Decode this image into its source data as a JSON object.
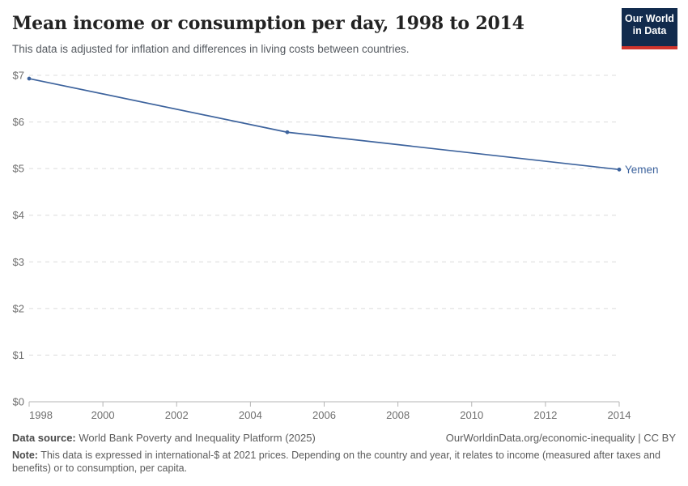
{
  "header": {
    "title": "Mean income or consumption per day, 1998 to 2014",
    "subtitle": "This data is adjusted for inflation and differences in living costs between countries."
  },
  "logo": {
    "line1": "Our World",
    "line2": "in Data",
    "bg_color": "#122b4d",
    "accent_color": "#d0342c"
  },
  "chart_data": {
    "type": "line",
    "title": "Mean income or consumption per day, 1998 to 2014",
    "xlabel": "",
    "ylabel": "",
    "xlim": [
      1998,
      2014
    ],
    "ylim": [
      0,
      7
    ],
    "x_ticks": [
      1998,
      2000,
      2002,
      2004,
      2006,
      2008,
      2010,
      2012,
      2014
    ],
    "y_ticks": [
      0,
      1,
      2,
      3,
      4,
      5,
      6,
      7
    ],
    "y_tick_prefix": "$",
    "grid": "horizontal-dashed",
    "legend_position": "end-of-line-label",
    "series": [
      {
        "name": "Yemen",
        "color": "#3d639d",
        "points": [
          [
            1998,
            6.93
          ],
          [
            2005,
            5.78
          ],
          [
            2014,
            4.98
          ]
        ]
      }
    ]
  },
  "footer": {
    "datasource_label": "Data source:",
    "datasource_value": "World Bank Poverty and Inequality Platform (2025)",
    "attribution": "OurWorldinData.org/economic-inequality | CC BY",
    "note_label": "Note:",
    "note_value": "This data is expressed in international-$ at 2021 prices. Depending on the country and year, it relates to income (measured after taxes and benefits) or to consumption, per capita."
  },
  "colors": {
    "grid": "#dcdcdc",
    "axis": "#b5b5b5",
    "tick_label": "#6e6e6e"
  }
}
